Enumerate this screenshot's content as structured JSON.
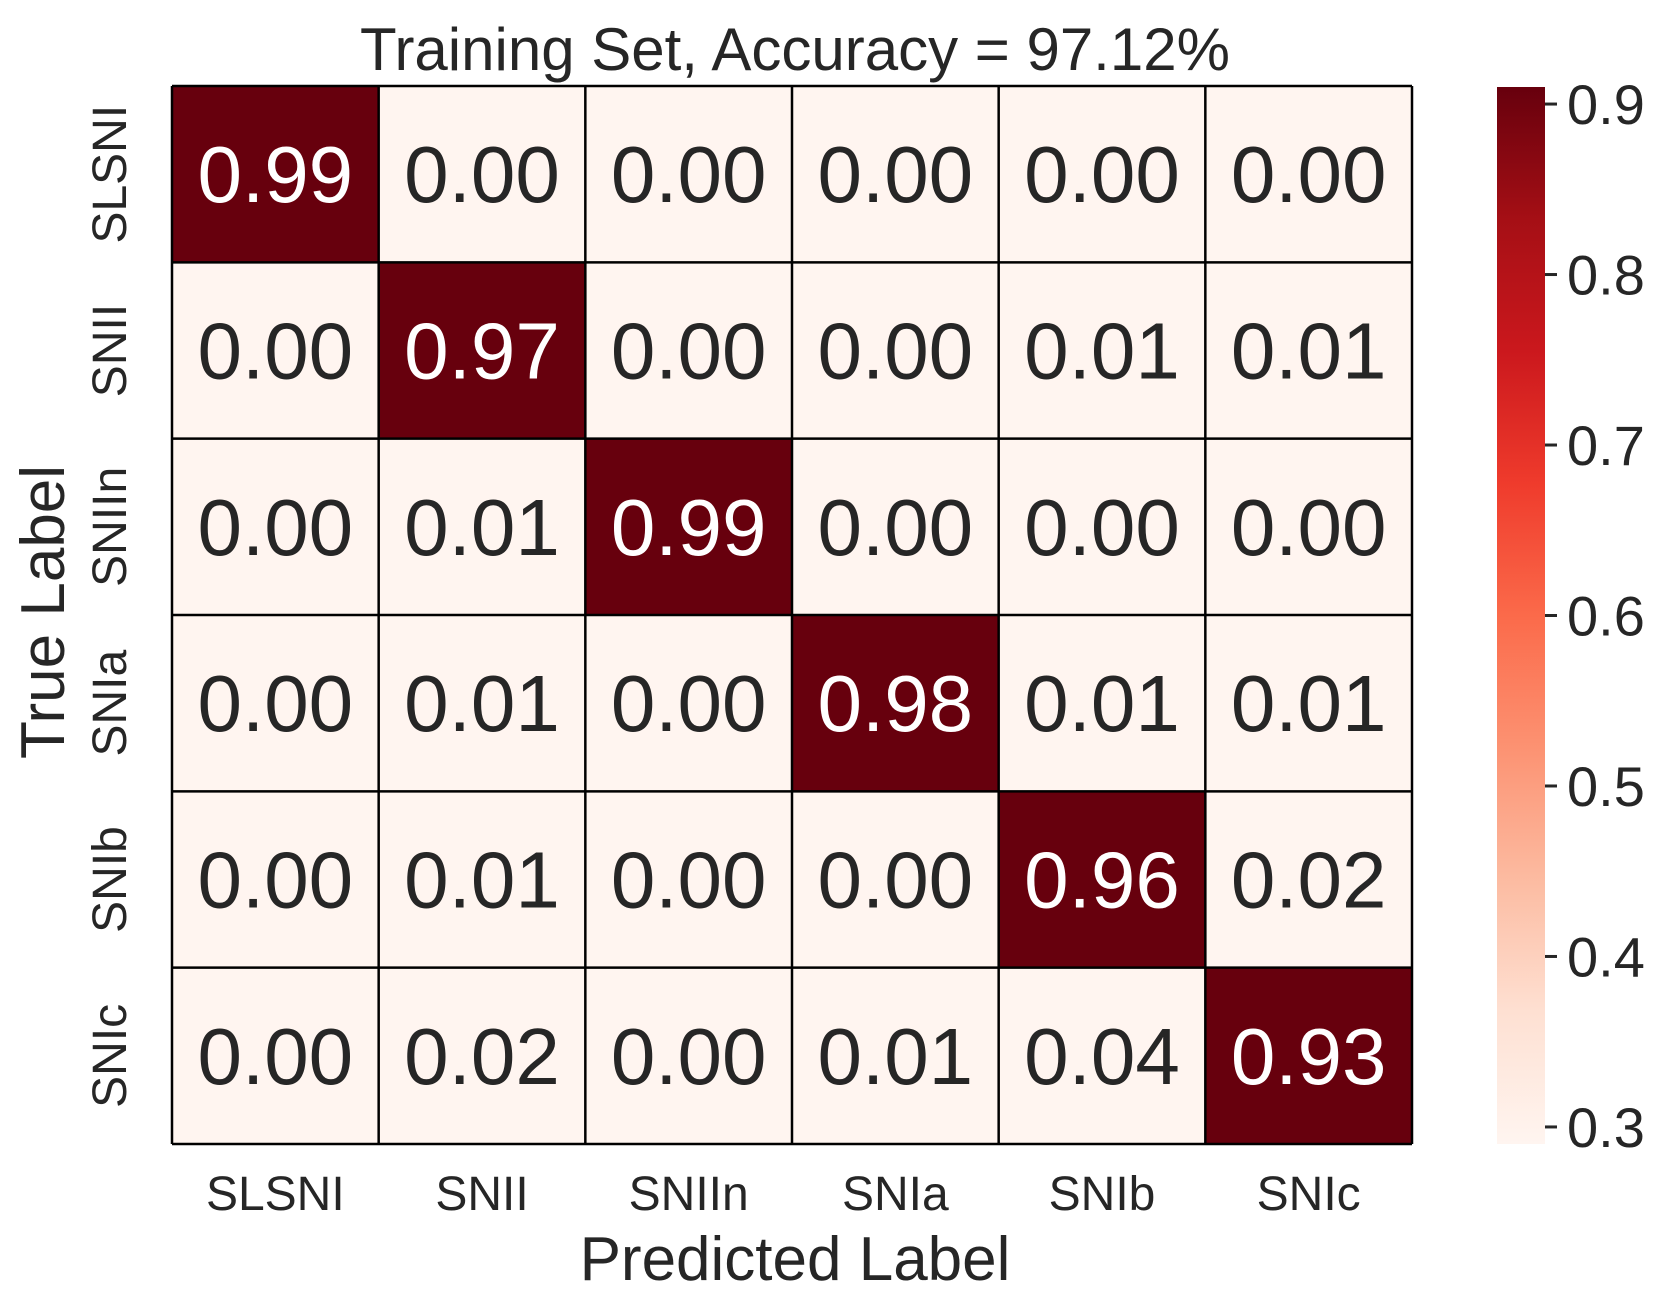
{
  "chart_data": {
    "type": "heatmap",
    "title": "Training Set, Accuracy = 97.12%",
    "xlabel": "Predicted Label",
    "ylabel": "True Label",
    "x_categories": [
      "SLSNI",
      "SNII",
      "SNIIn",
      "SNIa",
      "SNIb",
      "SNIc"
    ],
    "y_categories": [
      "SLSNI",
      "SNII",
      "SNIIn",
      "SNIa",
      "SNIb",
      "SNIc"
    ],
    "values": [
      [
        0.99,
        0.0,
        0.0,
        0.0,
        0.0,
        0.0
      ],
      [
        0.0,
        0.97,
        0.0,
        0.0,
        0.01,
        0.01
      ],
      [
        0.0,
        0.01,
        0.99,
        0.0,
        0.0,
        0.0
      ],
      [
        0.0,
        0.01,
        0.0,
        0.98,
        0.01,
        0.01
      ],
      [
        0.0,
        0.01,
        0.0,
        0.0,
        0.96,
        0.02
      ],
      [
        0.0,
        0.02,
        0.0,
        0.01,
        0.04,
        0.93
      ]
    ],
    "value_format": "0.00",
    "colorbar": {
      "vmin": 0.29,
      "vmax": 0.91,
      "ticks": [
        0.3,
        0.4,
        0.5,
        0.6,
        0.7,
        0.8,
        0.9
      ],
      "tick_labels": [
        "0.3",
        "0.4",
        "0.5",
        "0.6",
        "0.7",
        "0.8",
        "0.9"
      ],
      "colormap": "Reds"
    },
    "colors": {
      "cmap_stops": [
        "#fff5f0",
        "#fee0d2",
        "#fcbba1",
        "#fc9272",
        "#fb6a4a",
        "#ef3b2c",
        "#cb181d",
        "#a50f15",
        "#67000d"
      ],
      "text_dark": "#262626",
      "text_light": "#ffffff",
      "grid_line": "#000000"
    }
  }
}
